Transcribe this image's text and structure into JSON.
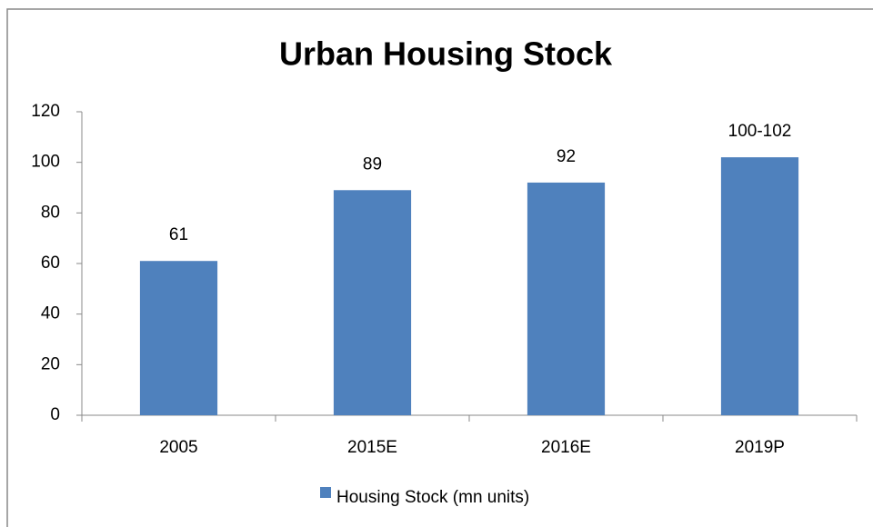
{
  "chart_data": {
    "type": "bar",
    "title": "Urban Housing Stock",
    "categories": [
      "2005",
      "2015E",
      "2016E",
      "2019P"
    ],
    "series": [
      {
        "name": "Housing Stock (mn units)",
        "color": "#4f81bd",
        "values": [
          61,
          89,
          92,
          102
        ],
        "value_labels": [
          "61",
          "89",
          "92",
          "100-102"
        ]
      }
    ],
    "ylim": [
      0,
      120
    ],
    "yticks": [
      0,
      20,
      40,
      60,
      80,
      100,
      120
    ],
    "grid": false,
    "legend": "bottom"
  }
}
